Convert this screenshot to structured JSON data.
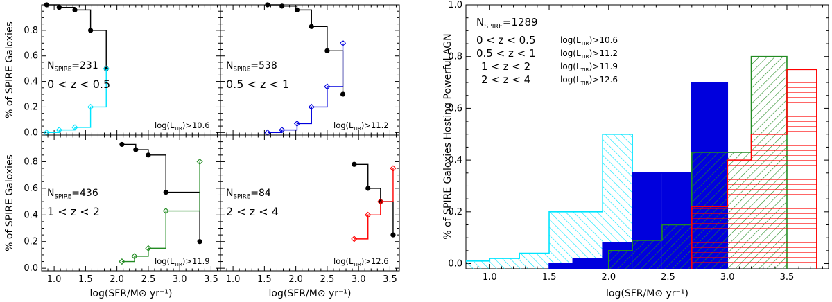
{
  "chart_data": [
    {
      "type": "line",
      "panel": "0 < z < 0.5",
      "n_label": "N_SPIRE=231",
      "z_label": "0 < z < 0.5",
      "ltir_label": "log(L_TIR)>10.6",
      "xlabel": "log(SFR/M⊙ yr⁻¹)",
      "ylabel": "% of SPIRE Galoxies",
      "xlim": [
        0.8,
        3.65
      ],
      "ylim": [
        -0.02,
        1.0
      ],
      "series": [
        {
          "color": "#000000",
          "marker": "dot",
          "points": [
            [
              0.88,
              1.0
            ],
            [
              1.08,
              0.98
            ],
            [
              1.33,
              0.96
            ],
            [
              1.58,
              0.8
            ],
            [
              1.83,
              0.5
            ]
          ]
        },
        {
          "color": "#00e5ff",
          "marker": "diamond",
          "points": [
            [
              1.83,
              0.5
            ],
            [
              1.58,
              0.2
            ],
            [
              1.33,
              0.04
            ],
            [
              1.08,
              0.02
            ],
            [
              0.88,
              0.0
            ]
          ]
        }
      ]
    },
    {
      "type": "line",
      "panel": "0.5 < z < 1",
      "n_label": "N_SPIRE=538",
      "z_label": "0.5 < z < 1",
      "ltir_label": "log(L_TIR)>11.2",
      "xlabel": "log(SFR/M⊙ yr⁻¹)",
      "ylabel": "",
      "xlim": [
        0.8,
        3.65
      ],
      "ylim": [
        -0.02,
        1.0
      ],
      "series": [
        {
          "color": "#000000",
          "marker": "dot",
          "points": [
            [
              1.55,
              1.0
            ],
            [
              1.78,
              0.99
            ],
            [
              2.02,
              0.96
            ],
            [
              2.25,
              0.83
            ],
            [
              2.5,
              0.64
            ],
            [
              2.75,
              0.3
            ]
          ]
        },
        {
          "color": "#0000dd",
          "marker": "diamond",
          "points": [
            [
              1.55,
              0.0
            ],
            [
              1.78,
              0.02
            ],
            [
              2.02,
              0.07
            ],
            [
              2.25,
              0.2
            ],
            [
              2.5,
              0.36
            ],
            [
              2.75,
              0.7
            ]
          ]
        }
      ]
    },
    {
      "type": "line",
      "panel": "1 < z < 2",
      "n_label": "N_SPIRE=436",
      "z_label": "1 < z < 2",
      "ltir_label": "log(L_TIR)>11.9",
      "xlabel": "log(SFR/M⊙ yr⁻¹)",
      "ylabel": "% of SPIRE Galoxies",
      "xlim": [
        0.8,
        3.65
      ],
      "ylim": [
        -0.02,
        1.0
      ],
      "series": [
        {
          "color": "#000000",
          "marker": "dot",
          "points": [
            [
              2.08,
              0.93
            ],
            [
              2.3,
              0.89
            ],
            [
              2.5,
              0.85
            ],
            [
              2.78,
              0.57
            ],
            [
              3.32,
              0.2
            ]
          ]
        },
        {
          "color": "#228B22",
          "marker": "diamond",
          "points": [
            [
              2.08,
              0.05
            ],
            [
              2.28,
              0.09
            ],
            [
              2.5,
              0.15
            ],
            [
              2.78,
              0.43
            ],
            [
              3.32,
              0.8
            ]
          ]
        }
      ]
    },
    {
      "type": "line",
      "panel": "2 < z < 4",
      "n_label": "N_SPIRE=84",
      "z_label": "2 < z < 4",
      "ltir_label": "log(L_TIR)>12.6",
      "xlabel": "log(SFR/M⊙ yr⁻¹)",
      "ylabel": "",
      "xlim": [
        0.8,
        3.65
      ],
      "ylim": [
        -0.02,
        1.0
      ],
      "series": [
        {
          "color": "#000000",
          "marker": "dot",
          "points": [
            [
              2.93,
              0.78
            ],
            [
              3.15,
              0.6
            ],
            [
              3.35,
              0.5
            ],
            [
              3.55,
              0.25
            ]
          ]
        },
        {
          "color": "#ff0000",
          "marker": "diamond",
          "points": [
            [
              2.93,
              0.22
            ],
            [
              3.15,
              0.4
            ],
            [
              3.35,
              0.5
            ],
            [
              3.55,
              0.75
            ]
          ]
        }
      ]
    },
    {
      "type": "bar",
      "n_label": "N_SPIRE=1289",
      "xlabel": "log(SFR/M⊙ yr⁻¹)",
      "ylabel": "% of SPIRE Galoxies Hosting Powerful AGN",
      "xlim": [
        0.8,
        3.85
      ],
      "ylim": [
        -0.02,
        1.0
      ],
      "series": [
        {
          "name": "0 < z < 0.5",
          "ltir": "log(L_TIR)>10.6",
          "color": "#00e5ff",
          "style": "hatch-diagonal",
          "bins": [
            [
              0.75,
              1.0,
              0.01
            ],
            [
              1.0,
              1.25,
              0.02
            ],
            [
              1.25,
              1.5,
              0.04
            ],
            [
              1.5,
              1.7,
              0.2
            ],
            [
              1.7,
              1.95,
              0.2
            ],
            [
              1.95,
              2.2,
              0.5
            ]
          ]
        },
        {
          "name": "0.5 < z < 1",
          "ltir": "log(L_TIR)>11.2",
          "color": "#0000dd",
          "style": "solid",
          "bins": [
            [
              1.5,
              1.7,
              0.0
            ],
            [
              1.7,
              1.95,
              0.02
            ],
            [
              1.95,
              2.2,
              0.08
            ],
            [
              2.2,
              2.45,
              0.35
            ],
            [
              2.45,
              2.7,
              0.35
            ],
            [
              2.7,
              3.0,
              0.7
            ]
          ]
        },
        {
          "name": "1 < z < 2",
          "ltir": "log(L_TIR)>11.9",
          "color": "#228B22",
          "style": "hatch-diagonal",
          "bins": [
            [
              2.0,
              2.2,
              0.05
            ],
            [
              2.2,
              2.45,
              0.09
            ],
            [
              2.45,
              2.7,
              0.15
            ],
            [
              2.7,
              3.0,
              0.43
            ],
            [
              3.0,
              3.2,
              0.43
            ],
            [
              3.2,
              3.5,
              0.8
            ]
          ]
        },
        {
          "name": "2 < z < 4",
          "ltir": "log(L_TIR)>12.6",
          "color": "#ff0000",
          "style": "hatch-horizontal",
          "bins": [
            [
              2.7,
              3.0,
              0.22
            ],
            [
              3.0,
              3.2,
              0.4
            ],
            [
              3.2,
              3.5,
              0.5
            ],
            [
              3.5,
              3.75,
              0.75
            ]
          ]
        }
      ]
    }
  ]
}
